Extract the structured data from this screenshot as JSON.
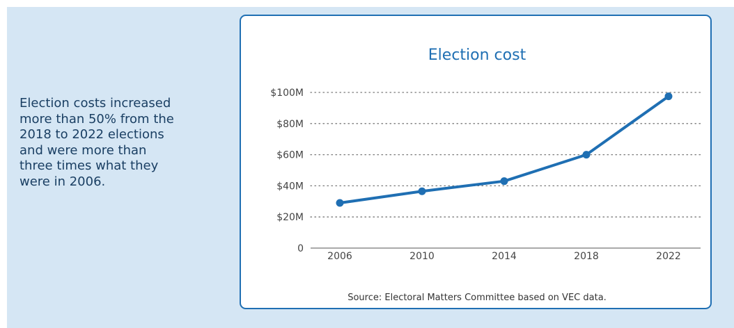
{
  "summary": {
    "lines": [
      "Election costs increased",
      "more than 50% from the",
      "2018 to 2022 elections",
      "and were more than",
      "three times what they",
      "were in 2006."
    ]
  },
  "chart_data": {
    "type": "line",
    "title": "Election cost",
    "xlabel": "",
    "ylabel": "",
    "categories": [
      "2006",
      "2010",
      "2014",
      "2018",
      "2022"
    ],
    "series": [
      {
        "values": [
          29,
          36.5,
          43,
          60,
          97.5
        ]
      }
    ],
    "ylim": [
      0,
      100
    ],
    "yticks": [
      0,
      20,
      40,
      60,
      80,
      100
    ],
    "ytick_labels": [
      "0",
      "$20M",
      "$40M",
      "$60M",
      "$80M",
      "$100M"
    ],
    "grid": "horizontal-dotted",
    "source": "Source: Electoral Matters Committee based on VEC data.",
    "colors": {
      "line": "#1f6fb3",
      "panel": "#d5e6f4",
      "border": "#1f6fb3"
    }
  }
}
